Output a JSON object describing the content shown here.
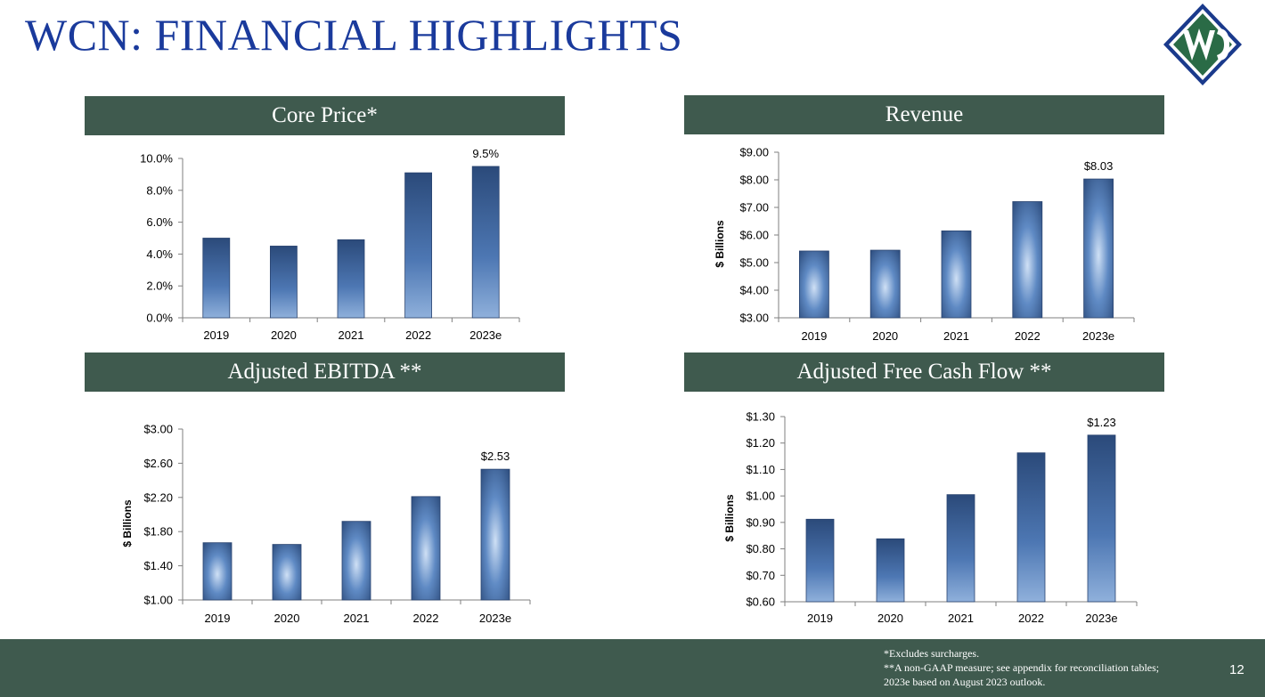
{
  "title": "WCN: FINANCIAL HIGHLIGHTS",
  "logo": {
    "name": "WCN logo",
    "colors": {
      "green": "#2a6b46",
      "blue": "#1a3a8c",
      "white": "#ffffff"
    }
  },
  "colors": {
    "accent_green": "#3f5a4e",
    "title_blue": "#1a3a9c",
    "bar_dark": "#2b4a7a",
    "bar_light": "#cfe0f5"
  },
  "chart_data": [
    {
      "type": "bar",
      "title": "Core Price*",
      "categories": [
        "2019",
        "2020",
        "2021",
        "2022",
        "2023e"
      ],
      "values": [
        5.0,
        4.5,
        4.9,
        9.1,
        9.5
      ],
      "ylim": [
        0,
        10
      ],
      "yticks": [
        "0.0%",
        "2.0%",
        "4.0%",
        "6.0%",
        "8.0%",
        "10.0%"
      ],
      "ylabel": "",
      "data_labels": [
        {
          "index": 4,
          "text": "9.5%"
        }
      ],
      "gradient": "vertical"
    },
    {
      "type": "bar",
      "title": "Revenue",
      "categories": [
        "2019",
        "2020",
        "2021",
        "2022",
        "2023e"
      ],
      "values": [
        5.42,
        5.45,
        6.15,
        7.21,
        8.03
      ],
      "ylim": [
        3,
        9
      ],
      "yticks": [
        "$3.00",
        "$4.00",
        "$5.00",
        "$6.00",
        "$7.00",
        "$8.00",
        "$9.00"
      ],
      "ylabel": "$ Billions",
      "data_labels": [
        {
          "index": 4,
          "text": "$8.03"
        }
      ],
      "gradient": "radial"
    },
    {
      "type": "bar",
      "title": "Adjusted EBITDA **",
      "categories": [
        "2019",
        "2020",
        "2021",
        "2022",
        "2023e"
      ],
      "values": [
        1.67,
        1.65,
        1.92,
        2.21,
        2.53
      ],
      "ylim": [
        1,
        3
      ],
      "yticks": [
        "$1.00",
        "$1.40",
        "$1.80",
        "$2.20",
        "$2.60",
        "$3.00"
      ],
      "ylabel": "$ Billions",
      "data_labels": [
        {
          "index": 4,
          "text": "$2.53"
        }
      ],
      "gradient": "radial"
    },
    {
      "type": "bar",
      "title": "Adjusted Free Cash Flow **",
      "categories": [
        "2019",
        "2020",
        "2021",
        "2022",
        "2023e"
      ],
      "values": [
        0.912,
        0.838,
        1.005,
        1.163,
        1.23
      ],
      "ylim": [
        0.6,
        1.3
      ],
      "yticks": [
        "$0.60",
        "$0.70",
        "$0.80",
        "$0.90",
        "$1.00",
        "$1.10",
        "$1.20",
        "$1.30"
      ],
      "ylabel": "$ Billions",
      "data_labels": [
        {
          "index": 4,
          "text": "$1.23"
        }
      ],
      "gradient": "vertical"
    }
  ],
  "footnotes": [
    "*Excludes surcharges.",
    "**A non-GAAP measure; see appendix for reconciliation tables;",
    "2023e based on August 2023 outlook."
  ],
  "page_number": "12"
}
